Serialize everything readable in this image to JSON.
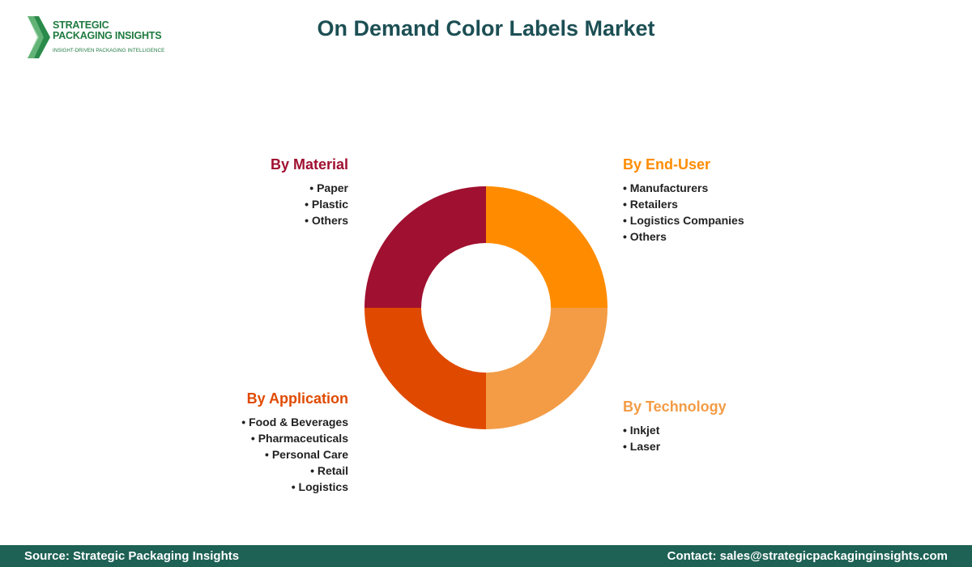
{
  "logo": {
    "line1": "STRATEGIC",
    "line2": "PACKAGING INSIGHTS",
    "tagline": "INSIGHT-DRIVEN PACKAGING INTELLIGENCE"
  },
  "title": "On Demand Color Labels Market",
  "chart_data": {
    "type": "pie",
    "style": "donut",
    "values": [
      25,
      25,
      25,
      25
    ],
    "colors": [
      "#ff8c00",
      "#f39c45",
      "#e04a00",
      "#a01030"
    ],
    "segments": [
      {
        "name": "By End-User",
        "color": "#ff8c00",
        "items": [
          "Manufacturers",
          "Retailers",
          "Logistics Companies",
          "Others"
        ]
      },
      {
        "name": "By Technology",
        "color": "#f39c45",
        "items": [
          "Inkjet",
          "Laser"
        ]
      },
      {
        "name": "By Application",
        "color": "#e04a00",
        "items": [
          "Food & Beverages",
          "Pharmaceuticals",
          "Personal Care",
          "Retail",
          "Logistics"
        ]
      },
      {
        "name": "By Material",
        "color": "#a01030",
        "items": [
          "Paper",
          "Plastic",
          "Others"
        ]
      }
    ]
  },
  "footer": {
    "source": "Source: Strategic Packaging Insights",
    "contact": "Contact: sales@strategicpackaginginsights.com"
  }
}
